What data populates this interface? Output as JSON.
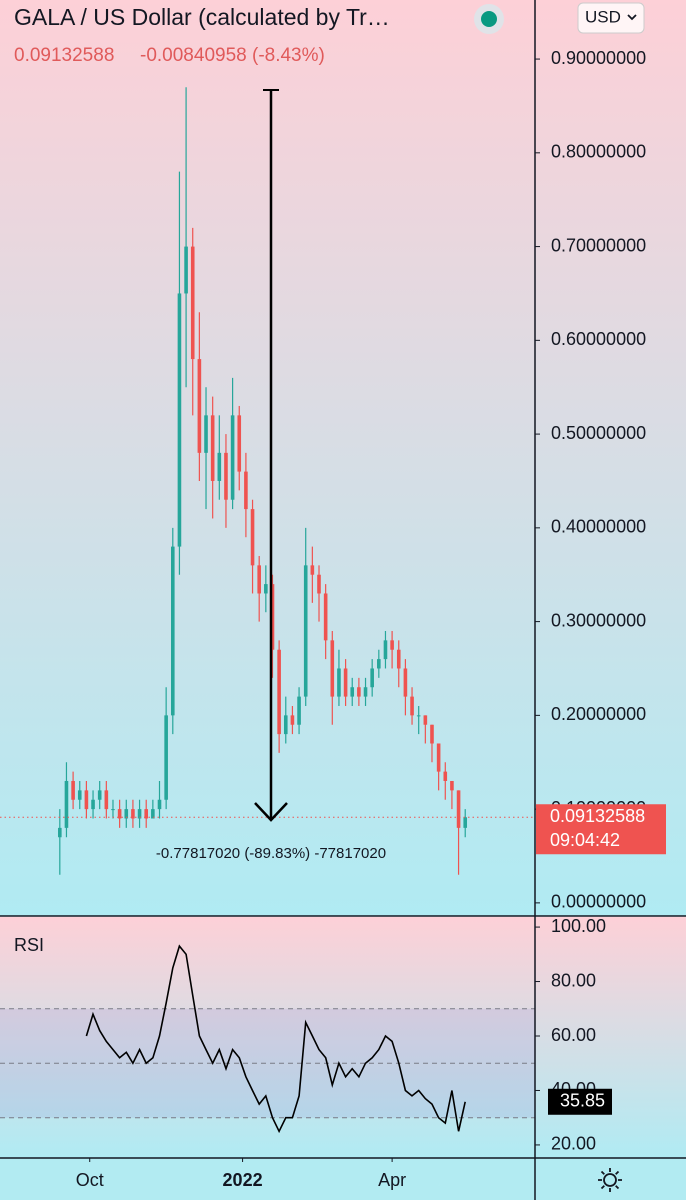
{
  "chart_data": {
    "type": "candlestick",
    "title": "GALA / US Dollar (calculated by Tr…",
    "last_price": "0.09132588",
    "change": "-0.00840958 (-8.43%)",
    "currency": "USD",
    "price_label": {
      "value": 0.09132588,
      "label": "0.09132588"
    },
    "countdown": "09:04:42",
    "annotation": "-0.77817020 (-89.83%) -77817020",
    "up_color": "#26a69a",
    "down_color": "#ef5350",
    "xlim": [
      -54,
      268
    ],
    "xticks": [
      {
        "value": 0,
        "label": "Oct"
      },
      {
        "value": 92,
        "label": "2022"
      },
      {
        "value": 182,
        "label": "Apr"
      }
    ],
    "ylim": [
      -0.014,
      0.963
    ],
    "yticks": [
      {
        "value": 0,
        "label": "0.00000000"
      },
      {
        "value": 0.1,
        "label": "0.10000000"
      },
      {
        "value": 0.2,
        "label": "0.20000000"
      },
      {
        "value": 0.3,
        "label": "0.30000000"
      },
      {
        "value": 0.4,
        "label": "0.40000000"
      },
      {
        "value": 0.5,
        "label": "0.50000000"
      },
      {
        "value": 0.6,
        "label": "0.60000000"
      },
      {
        "value": 0.7,
        "label": "0.70000000"
      },
      {
        "value": 0.8,
        "label": "0.80000000"
      },
      {
        "value": 0.9,
        "label": "0.90000000"
      }
    ],
    "x": [
      -18,
      -14,
      -10,
      -6,
      -2,
      2,
      6,
      10,
      14,
      18,
      22,
      26,
      30,
      34,
      38,
      42,
      46,
      50,
      54,
      58,
      62,
      66,
      70,
      74,
      78,
      82,
      86,
      90,
      94,
      98,
      102,
      106,
      110,
      114,
      118,
      122,
      126,
      130,
      134,
      138,
      142,
      146,
      150,
      154,
      158,
      162,
      166,
      170,
      174,
      178,
      182,
      186,
      190,
      194,
      198,
      202,
      206,
      210,
      214,
      218,
      222,
      226
    ],
    "open": [
      0.07,
      0.08,
      0.13,
      0.11,
      0.12,
      0.1,
      0.11,
      0.12,
      0.1,
      0.1,
      0.09,
      0.1,
      0.09,
      0.1,
      0.09,
      0.1,
      0.11,
      0.2,
      0.38,
      0.65,
      0.7,
      0.58,
      0.48,
      0.52,
      0.45,
      0.48,
      0.43,
      0.52,
      0.46,
      0.42,
      0.36,
      0.33,
      0.34,
      0.27,
      0.18,
      0.2,
      0.19,
      0.22,
      0.36,
      0.35,
      0.33,
      0.28,
      0.22,
      0.25,
      0.22,
      0.23,
      0.22,
      0.23,
      0.25,
      0.26,
      0.28,
      0.27,
      0.25,
      0.22,
      0.2,
      0.2,
      0.19,
      0.17,
      0.14,
      0.13,
      0.12,
      0.08
    ],
    "high": [
      0.1,
      0.15,
      0.14,
      0.13,
      0.13,
      0.12,
      0.13,
      0.13,
      0.11,
      0.11,
      0.11,
      0.11,
      0.11,
      0.11,
      0.11,
      0.13,
      0.23,
      0.4,
      0.78,
      0.87,
      0.72,
      0.63,
      0.55,
      0.54,
      0.52,
      0.5,
      0.56,
      0.53,
      0.48,
      0.43,
      0.37,
      0.36,
      0.35,
      0.28,
      0.22,
      0.21,
      0.23,
      0.4,
      0.38,
      0.36,
      0.34,
      0.29,
      0.27,
      0.26,
      0.24,
      0.24,
      0.24,
      0.26,
      0.27,
      0.29,
      0.29,
      0.28,
      0.26,
      0.23,
      0.21,
      0.2,
      0.19,
      0.17,
      0.15,
      0.13,
      0.12,
      0.1
    ],
    "low": [
      0.03,
      0.07,
      0.1,
      0.1,
      0.09,
      0.09,
      0.1,
      0.09,
      0.09,
      0.08,
      0.08,
      0.08,
      0.08,
      0.08,
      0.09,
      0.09,
      0.1,
      0.18,
      0.35,
      0.55,
      0.52,
      0.45,
      0.42,
      0.41,
      0.43,
      0.4,
      0.42,
      0.44,
      0.39,
      0.33,
      0.3,
      0.31,
      0.24,
      0.16,
      0.17,
      0.18,
      0.18,
      0.21,
      0.32,
      0.3,
      0.26,
      0.19,
      0.21,
      0.21,
      0.21,
      0.21,
      0.21,
      0.22,
      0.24,
      0.25,
      0.25,
      0.23,
      0.2,
      0.19,
      0.18,
      0.17,
      0.15,
      0.12,
      0.11,
      0.1,
      0.03,
      0.07
    ],
    "close": [
      0.08,
      0.13,
      0.11,
      0.12,
      0.1,
      0.11,
      0.12,
      0.1,
      0.1,
      0.09,
      0.1,
      0.09,
      0.1,
      0.09,
      0.1,
      0.11,
      0.2,
      0.38,
      0.65,
      0.7,
      0.58,
      0.48,
      0.52,
      0.45,
      0.48,
      0.43,
      0.52,
      0.46,
      0.42,
      0.36,
      0.33,
      0.34,
      0.27,
      0.18,
      0.2,
      0.19,
      0.22,
      0.36,
      0.35,
      0.33,
      0.28,
      0.22,
      0.25,
      0.22,
      0.23,
      0.22,
      0.23,
      0.25,
      0.26,
      0.28,
      0.27,
      0.25,
      0.22,
      0.2,
      0.2,
      0.19,
      0.17,
      0.14,
      0.13,
      0.12,
      0.08,
      0.09132588
    ],
    "rsi": {
      "name": "RSI",
      "color": "#000000",
      "values": [
        null,
        null,
        null,
        null,
        60,
        68,
        62,
        58,
        55,
        52,
        54,
        50,
        55,
        50,
        52,
        60,
        72,
        85,
        93,
        90,
        75,
        60,
        55,
        50,
        55,
        48,
        55,
        52,
        45,
        40,
        35,
        38,
        30,
        25,
        30,
        30,
        38,
        65,
        60,
        55,
        52,
        42,
        50,
        45,
        48,
        45,
        50,
        52,
        55,
        60,
        58,
        50,
        40,
        38,
        40,
        37,
        35,
        30,
        28,
        40,
        25,
        35.85
      ],
      "value_label": {
        "value": 35.85,
        "label": "35.85"
      },
      "ylim": [
        15.2,
        103.7
      ],
      "yticks": [
        {
          "value": 20,
          "label": "20.00"
        },
        {
          "value": 40,
          "label": "40.00"
        },
        {
          "value": 60,
          "label": "60.00"
        },
        {
          "value": 80,
          "label": "80.00"
        },
        {
          "value": 100,
          "label": "100.00"
        }
      ],
      "levels": [
        30,
        50,
        70
      ]
    }
  }
}
